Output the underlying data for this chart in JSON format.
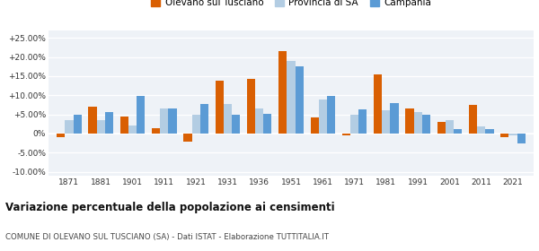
{
  "years": [
    1871,
    1881,
    1901,
    1911,
    1921,
    1931,
    1936,
    1951,
    1961,
    1971,
    1981,
    1991,
    2001,
    2011,
    2021
  ],
  "olevano": [
    -1.0,
    7.0,
    4.5,
    1.5,
    -2.0,
    13.8,
    14.2,
    21.5,
    4.2,
    -0.5,
    15.5,
    6.5,
    3.0,
    7.5,
    -1.0
  ],
  "provincia": [
    3.5,
    3.5,
    2.0,
    6.5,
    5.0,
    7.8,
    6.5,
    19.0,
    9.0,
    5.0,
    6.0,
    5.5,
    3.5,
    1.8,
    -0.5
  ],
  "campania": [
    5.0,
    5.5,
    9.8,
    6.5,
    7.8,
    5.0,
    5.2,
    17.5,
    9.8,
    6.2,
    8.0,
    5.0,
    1.2,
    1.2,
    -2.5
  ],
  "color_olevano": "#d95f02",
  "color_provincia": "#b3cde3",
  "color_campania": "#5b9bd5",
  "title": "Variazione percentuale della popolazione ai censimenti",
  "subtitle": "COMUNE DI OLEVANO SUL TUSCIANO (SA) - Dati ISTAT - Elaborazione TUTTITALIA.IT",
  "legend_labels": [
    "Olevano sul Tusciano",
    "Provincia di SA",
    "Campania"
  ],
  "yticks": [
    -10,
    -5,
    0,
    5,
    10,
    15,
    20,
    25
  ],
  "ylim": [
    -11,
    27
  ],
  "background": "#eef2f7"
}
